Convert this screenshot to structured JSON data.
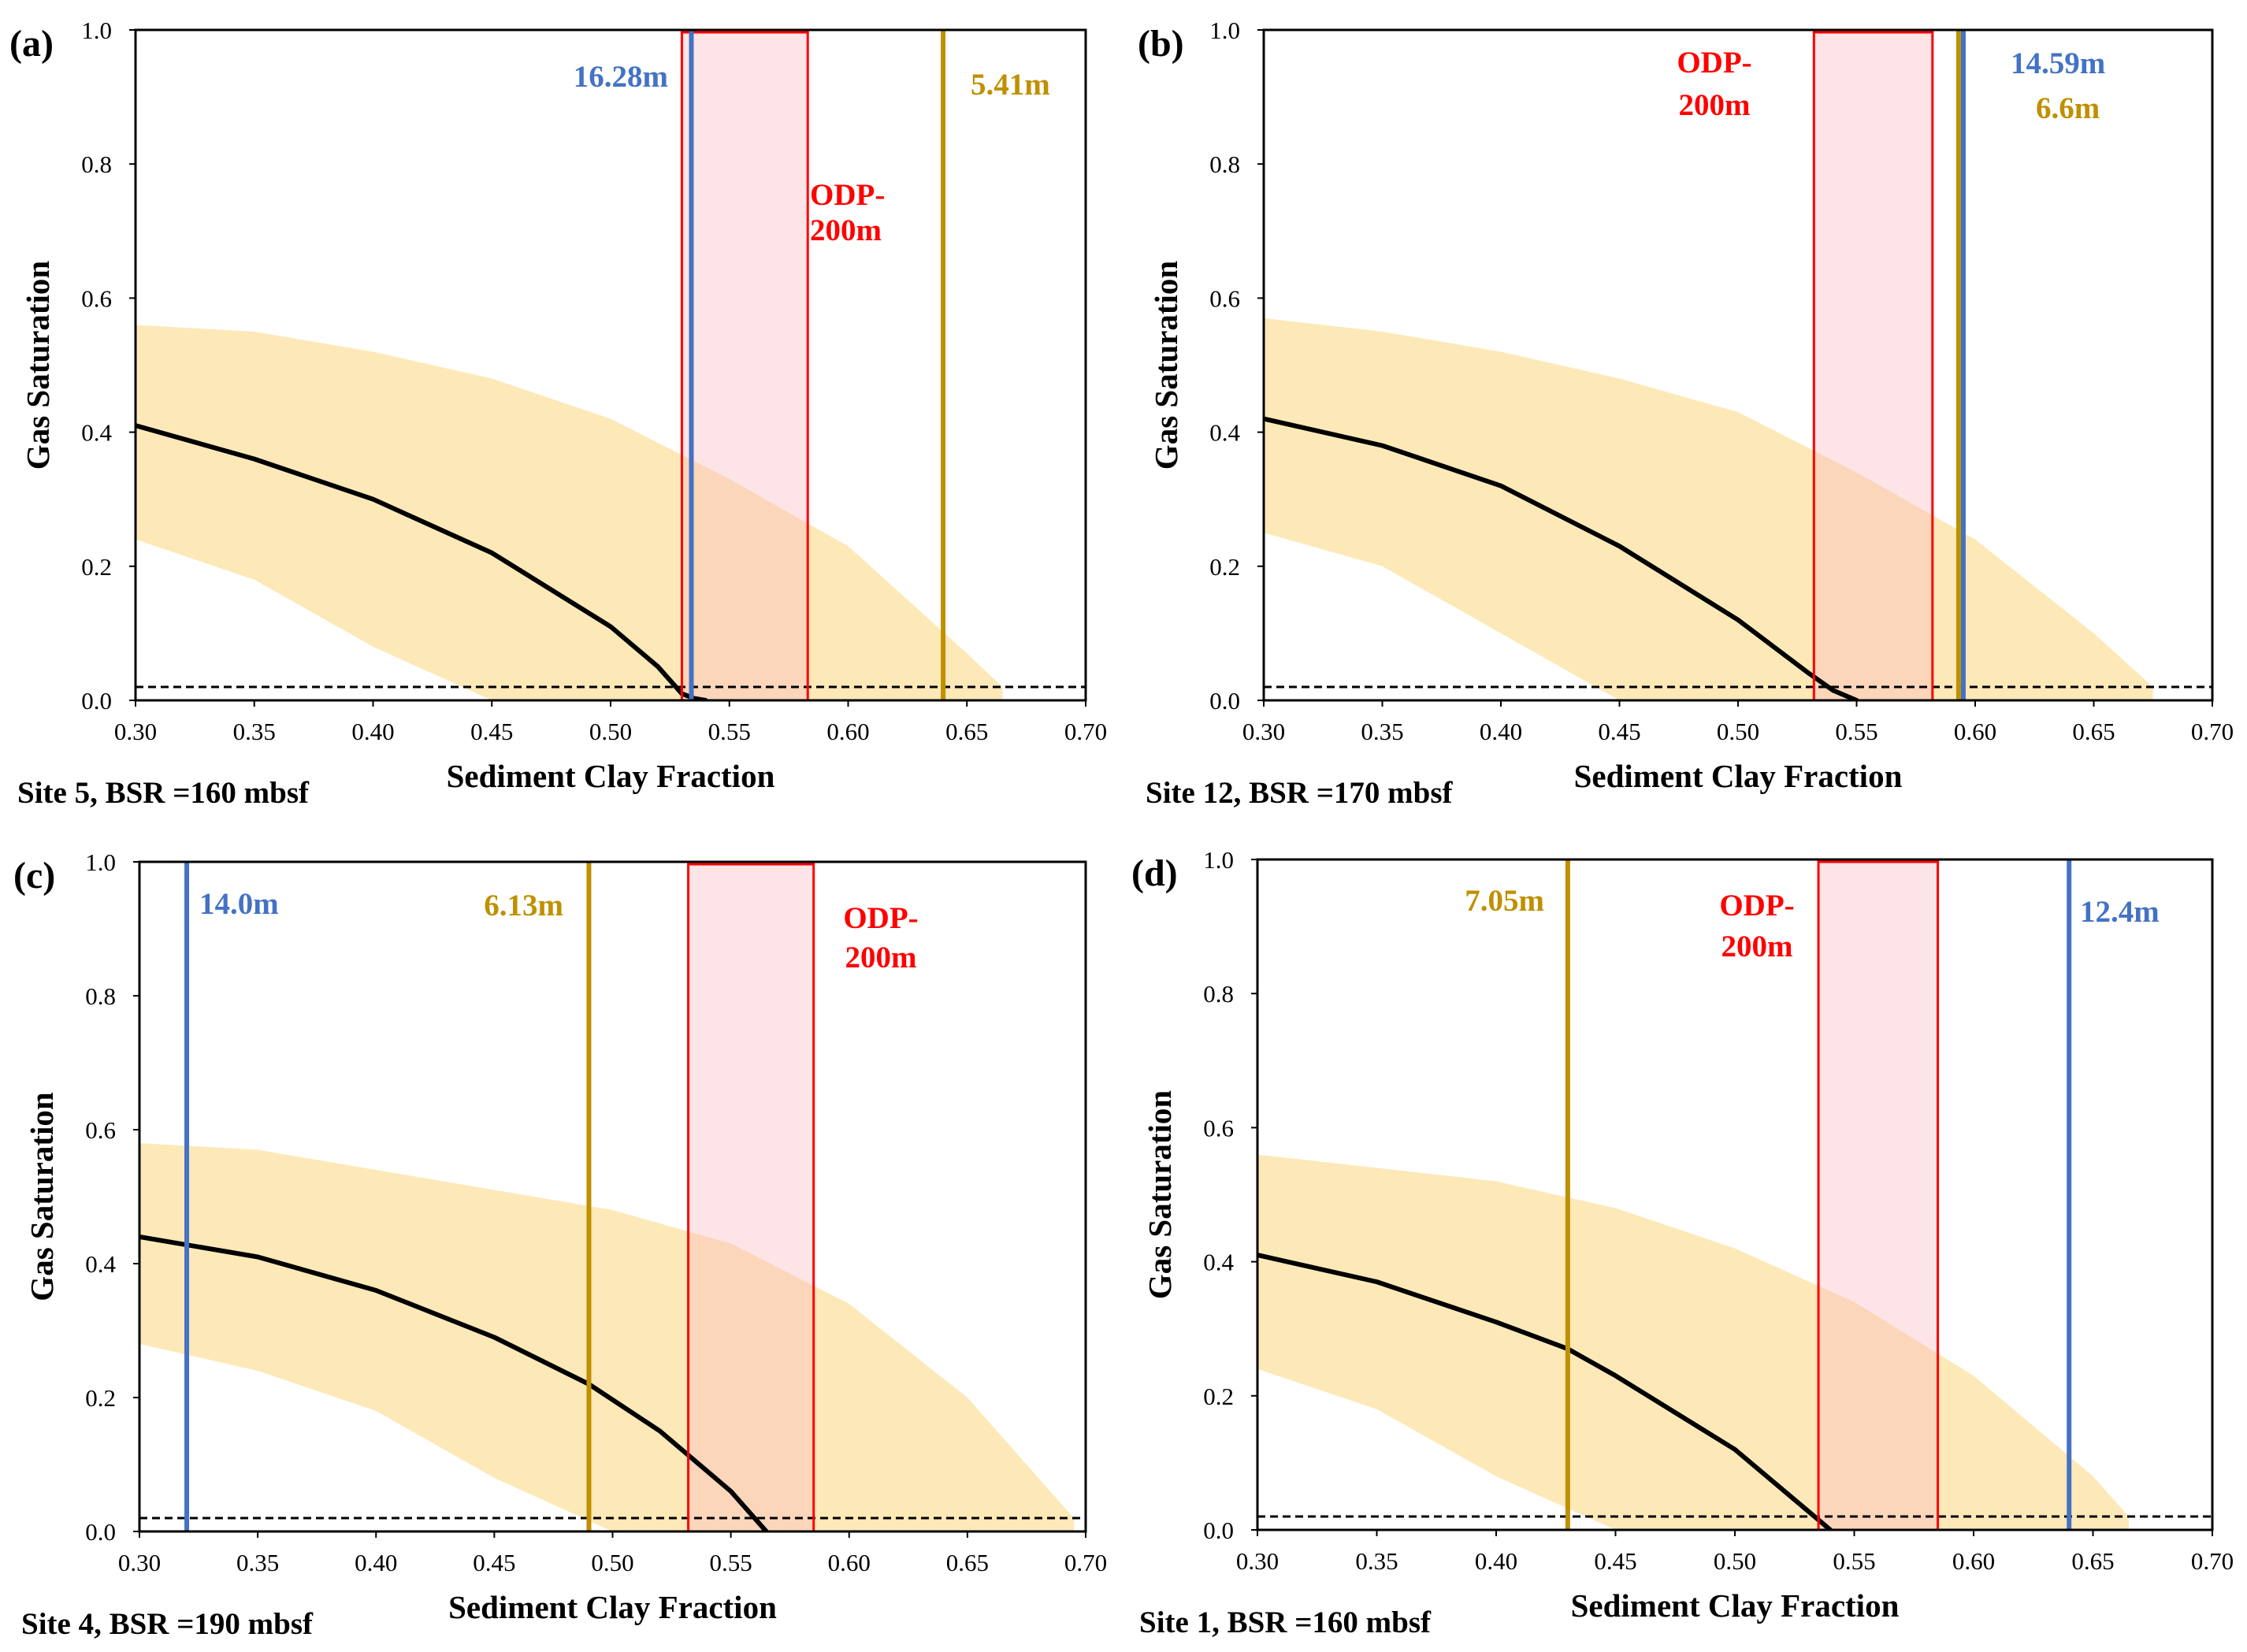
{
  "figure": {
    "xlabel": "Sediment Clay Fraction",
    "ylabel": "Gas Saturation",
    "xlim": [
      0.3,
      0.7
    ],
    "ylim": [
      0.0,
      1.0
    ],
    "xticks": [
      "0.30",
      "0.35",
      "0.40",
      "0.45",
      "0.50",
      "0.55",
      "0.60",
      "0.65",
      "0.70"
    ],
    "yticks": [
      "0.0",
      "0.2",
      "0.4",
      "0.6",
      "0.8",
      "1.0"
    ],
    "colors": {
      "band": "#fde9b8",
      "curve": "#000000",
      "blue": "#4472c4",
      "gold": "#bf9000",
      "red": "#ff0000",
      "redfill": "#fde0e4",
      "threshold": "#000000"
    }
  },
  "chart_data": [
    {
      "type": "line",
      "panel": "(a)",
      "caption": "Site 5, BSR =160 mbsf",
      "xlabel": "Sediment Clay Fraction",
      "ylabel": "Gas Saturation",
      "xlim": [
        0.3,
        0.7
      ],
      "ylim": [
        0.0,
        1.0
      ],
      "threshold": 0.02,
      "curve": {
        "x": [
          0.3,
          0.35,
          0.4,
          0.45,
          0.5,
          0.52,
          0.53,
          0.535,
          0.54
        ],
        "y": [
          0.41,
          0.36,
          0.3,
          0.22,
          0.11,
          0.05,
          0.01,
          0.003,
          0.0
        ]
      },
      "band": {
        "x": [
          0.3,
          0.35,
          0.4,
          0.45,
          0.5,
          0.55,
          0.6,
          0.65,
          0.665
        ],
        "upper": [
          0.56,
          0.55,
          0.52,
          0.48,
          0.42,
          0.33,
          0.23,
          0.07,
          0.02
        ],
        "lower": [
          0.24,
          0.18,
          0.08,
          0.0,
          0.0,
          0.0,
          0.0,
          0.0,
          0.0
        ]
      },
      "box": {
        "label_line1": "ODP-",
        "label_line2": "200m",
        "x0": 0.53,
        "x1": 0.583
      },
      "lines": [
        {
          "label": "16.28m",
          "x": 0.534,
          "color": "blue"
        },
        {
          "label": "5.41m",
          "x": 0.64,
          "color": "gold"
        }
      ]
    },
    {
      "type": "line",
      "panel": "(b)",
      "caption": "Site 12, BSR =170 mbsf",
      "xlabel": "Sediment Clay Fraction",
      "ylabel": "Gas Saturation",
      "xlim": [
        0.3,
        0.7
      ],
      "ylim": [
        0.0,
        1.0
      ],
      "threshold": 0.02,
      "curve": {
        "x": [
          0.3,
          0.35,
          0.4,
          0.45,
          0.5,
          0.53,
          0.54,
          0.55
        ],
        "y": [
          0.42,
          0.38,
          0.32,
          0.23,
          0.12,
          0.04,
          0.015,
          0.0
        ]
      },
      "band": {
        "x": [
          0.3,
          0.35,
          0.4,
          0.45,
          0.5,
          0.55,
          0.6,
          0.65,
          0.675
        ],
        "upper": [
          0.57,
          0.55,
          0.52,
          0.48,
          0.43,
          0.34,
          0.24,
          0.1,
          0.02
        ],
        "lower": [
          0.25,
          0.2,
          0.1,
          0.0,
          0.0,
          0.0,
          0.0,
          0.0,
          0.0
        ]
      },
      "box": {
        "label_line1": "ODP-",
        "label_line2": "200m",
        "x0": 0.532,
        "x1": 0.582
      },
      "lines": [
        {
          "label": "14.59m",
          "x": 0.595,
          "color": "blue"
        },
        {
          "label": "6.6m",
          "x": 0.593,
          "color": "gold"
        }
      ]
    },
    {
      "type": "line",
      "panel": "(c)",
      "caption": "Site 4, BSR =190 mbsf",
      "xlabel": "Sediment Clay Fraction",
      "ylabel": "Gas Saturation",
      "xlim": [
        0.3,
        0.7
      ],
      "ylim": [
        0.0,
        1.0
      ],
      "threshold": 0.02,
      "curve": {
        "x": [
          0.3,
          0.35,
          0.4,
          0.45,
          0.49,
          0.52,
          0.55,
          0.565
        ],
        "y": [
          0.44,
          0.41,
          0.36,
          0.29,
          0.22,
          0.15,
          0.06,
          0.0
        ]
      },
      "band": {
        "x": [
          0.3,
          0.35,
          0.4,
          0.45,
          0.5,
          0.55,
          0.6,
          0.65,
          0.695
        ],
        "upper": [
          0.58,
          0.57,
          0.54,
          0.51,
          0.48,
          0.43,
          0.34,
          0.2,
          0.02
        ],
        "lower": [
          0.28,
          0.24,
          0.18,
          0.08,
          0.0,
          0.0,
          0.0,
          0.0,
          0.0
        ]
      },
      "box": {
        "label_line1": "ODP-",
        "label_line2": "200m",
        "x0": 0.532,
        "x1": 0.585
      },
      "lines": [
        {
          "label": "14.0m",
          "x": 0.32,
          "color": "blue"
        },
        {
          "label": "6.13m",
          "x": 0.49,
          "color": "gold"
        }
      ]
    },
    {
      "type": "line",
      "panel": "(d)",
      "caption": "Site 1, BSR =160 mbsf",
      "xlabel": "Sediment Clay Fraction",
      "ylabel": "Gas Saturation",
      "xlim": [
        0.3,
        0.7
      ],
      "ylim": [
        0.0,
        1.0
      ],
      "threshold": 0.02,
      "curve": {
        "x": [
          0.3,
          0.35,
          0.4,
          0.43,
          0.45,
          0.5,
          0.53,
          0.54
        ],
        "y": [
          0.41,
          0.37,
          0.31,
          0.27,
          0.23,
          0.12,
          0.03,
          0.0
        ]
      },
      "band": {
        "x": [
          0.3,
          0.35,
          0.4,
          0.45,
          0.5,
          0.55,
          0.6,
          0.65,
          0.665
        ],
        "upper": [
          0.56,
          0.54,
          0.52,
          0.48,
          0.42,
          0.34,
          0.23,
          0.08,
          0.02
        ],
        "lower": [
          0.24,
          0.18,
          0.08,
          0.0,
          0.0,
          0.0,
          0.0,
          0.0,
          0.0
        ]
      },
      "box": {
        "label_line1": "ODP-",
        "label_line2": "200m",
        "x0": 0.535,
        "x1": 0.585
      },
      "lines": [
        {
          "label": "12.4m",
          "x": 0.64,
          "color": "blue"
        },
        {
          "label": "7.05m",
          "x": 0.43,
          "color": "gold"
        }
      ]
    }
  ]
}
